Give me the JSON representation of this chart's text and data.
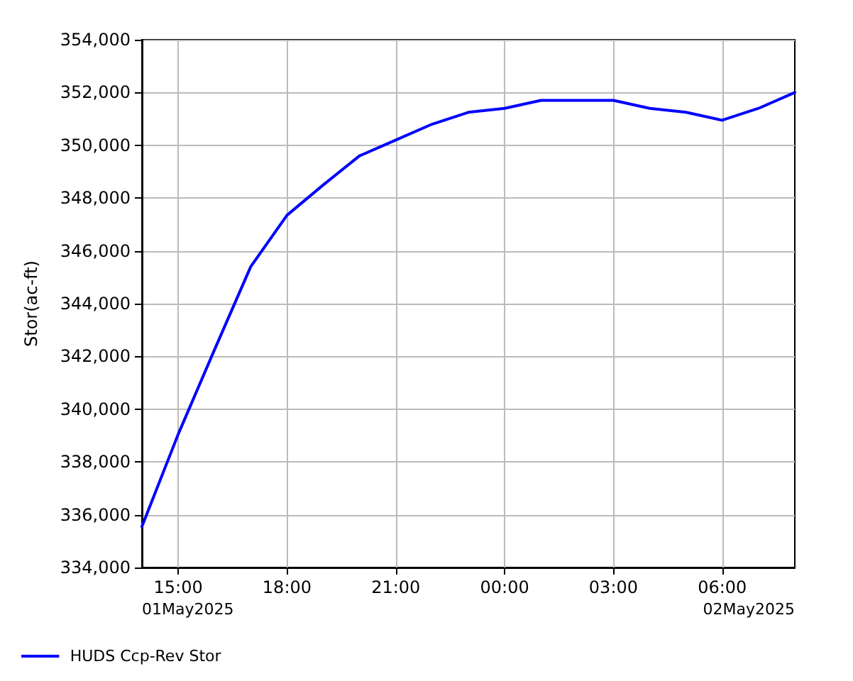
{
  "chart_data": {
    "type": "line",
    "ylabel": "Stor(ac-ft)",
    "x": [
      "2025-05-01T14:00",
      "2025-05-01T15:00",
      "2025-05-01T16:00",
      "2025-05-01T17:00",
      "2025-05-01T18:00",
      "2025-05-01T19:00",
      "2025-05-01T20:00",
      "2025-05-01T21:00",
      "2025-05-01T22:00",
      "2025-05-01T23:00",
      "2025-05-02T00:00",
      "2025-05-02T01:00",
      "2025-05-02T02:00",
      "2025-05-02T03:00",
      "2025-05-02T04:00",
      "2025-05-02T05:00",
      "2025-05-02T06:00",
      "2025-05-02T07:00",
      "2025-05-02T08:00"
    ],
    "series": [
      {
        "name": "HUDS Ccp-Rev Stor",
        "color": "#0000ff",
        "values": [
          335550,
          339050,
          342250,
          345400,
          347350,
          348500,
          349600,
          350200,
          350800,
          351250,
          351400,
          351700,
          351700,
          351700,
          351400,
          351250,
          350950,
          351400,
          352000
        ]
      }
    ],
    "xlim": [
      "2025-05-01T14:00",
      "2025-05-02T08:00"
    ],
    "xticks": [
      {
        "value": "2025-05-01T15:00",
        "label": "15:00"
      },
      {
        "value": "2025-05-01T18:00",
        "label": "18:00"
      },
      {
        "value": "2025-05-01T21:00",
        "label": "21:00"
      },
      {
        "value": "2025-05-02T00:00",
        "label": "00:00"
      },
      {
        "value": "2025-05-02T03:00",
        "label": "03:00"
      },
      {
        "value": "2025-05-02T06:00",
        "label": "06:00"
      }
    ],
    "ylim": [
      334000,
      354000
    ],
    "yticks": [
      {
        "value": 334000,
        "label": "334,000"
      },
      {
        "value": 336000,
        "label": "336,000"
      },
      {
        "value": 338000,
        "label": "338,000"
      },
      {
        "value": 340000,
        "label": "340,000"
      },
      {
        "value": 342000,
        "label": "342,000"
      },
      {
        "value": 344000,
        "label": "344,000"
      },
      {
        "value": 346000,
        "label": "346,000"
      },
      {
        "value": 348000,
        "label": "348,000"
      },
      {
        "value": 350000,
        "label": "350,000"
      },
      {
        "value": 352000,
        "label": "352,000"
      },
      {
        "value": 354000,
        "label": "354,000"
      }
    ],
    "annotations": [
      "01May2025",
      "02May2025"
    ],
    "grid": true,
    "legend": "bottom left",
    "marker": "none",
    "line_style": "solid"
  }
}
